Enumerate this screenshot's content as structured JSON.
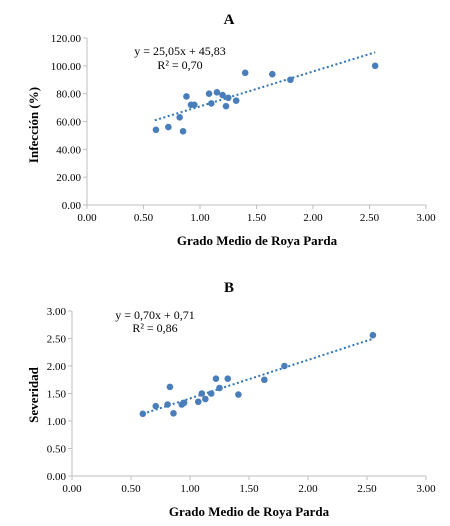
{
  "colors": {
    "marker": "#4a7ebb",
    "trendline": "#2e75b6",
    "axis": "#bfbfbf"
  },
  "chart_data": [
    {
      "panel": "A",
      "type": "scatter",
      "xlabel": "Grado Medio de Roya Parda",
      "ylabel": "Infección (%)",
      "xlim": [
        0,
        3
      ],
      "ylim": [
        0,
        120
      ],
      "xticks": [
        "0.00",
        "0.50",
        "1.00",
        "1.50",
        "2.00",
        "2.50",
        "3.00"
      ],
      "yticks": [
        "0.00",
        "20.00",
        "40.00",
        "60.00",
        "80.00",
        "100.00",
        "120.00"
      ],
      "equation": "y = 25,05x + 45,83",
      "r2": "R² = 0,70",
      "trendline": {
        "slope": 25.05,
        "intercept": 45.83,
        "x_range": [
          0.6,
          2.55
        ]
      },
      "points": [
        {
          "x": 0.61,
          "y": 54
        },
        {
          "x": 0.72,
          "y": 56
        },
        {
          "x": 0.82,
          "y": 63
        },
        {
          "x": 0.85,
          "y": 53
        },
        {
          "x": 0.88,
          "y": 78
        },
        {
          "x": 0.92,
          "y": 72
        },
        {
          "x": 0.95,
          "y": 72
        },
        {
          "x": 1.08,
          "y": 80
        },
        {
          "x": 1.1,
          "y": 73
        },
        {
          "x": 1.15,
          "y": 81
        },
        {
          "x": 1.2,
          "y": 79
        },
        {
          "x": 1.23,
          "y": 71
        },
        {
          "x": 1.25,
          "y": 77
        },
        {
          "x": 1.32,
          "y": 75
        },
        {
          "x": 1.4,
          "y": 95
        },
        {
          "x": 1.64,
          "y": 94
        },
        {
          "x": 1.8,
          "y": 90
        },
        {
          "x": 2.55,
          "y": 100
        }
      ]
    },
    {
      "panel": "B",
      "type": "scatter",
      "xlabel": "Grado Medio de Roya Parda",
      "ylabel": "Severidad",
      "xlim": [
        0,
        3
      ],
      "ylim": [
        0,
        3
      ],
      "xticks": [
        "0.00",
        "0.50",
        "1.00",
        "1.50",
        "2.00",
        "2.50",
        "3.00"
      ],
      "yticks": [
        "0.00",
        "0.50",
        "1.00",
        "1.50",
        "2.00",
        "2.50",
        "3.00"
      ],
      "equation": "y = 0,70x + 0,71",
      "r2": "R² = 0,86",
      "trendline": {
        "slope": 0.7,
        "intercept": 0.71,
        "x_range": [
          0.6,
          2.55
        ]
      },
      "points": [
        {
          "x": 0.6,
          "y": 1.13
        },
        {
          "x": 0.71,
          "y": 1.27
        },
        {
          "x": 0.81,
          "y": 1.3
        },
        {
          "x": 0.83,
          "y": 1.62
        },
        {
          "x": 0.86,
          "y": 1.14
        },
        {
          "x": 0.93,
          "y": 1.3
        },
        {
          "x": 0.95,
          "y": 1.33
        },
        {
          "x": 1.07,
          "y": 1.35
        },
        {
          "x": 1.1,
          "y": 1.5
        },
        {
          "x": 1.13,
          "y": 1.4
        },
        {
          "x": 1.18,
          "y": 1.5
        },
        {
          "x": 1.22,
          "y": 1.77
        },
        {
          "x": 1.25,
          "y": 1.6
        },
        {
          "x": 1.32,
          "y": 1.77
        },
        {
          "x": 1.41,
          "y": 1.48
        },
        {
          "x": 1.63,
          "y": 1.75
        },
        {
          "x": 1.8,
          "y": 2.0
        },
        {
          "x": 2.55,
          "y": 2.56
        }
      ]
    }
  ]
}
